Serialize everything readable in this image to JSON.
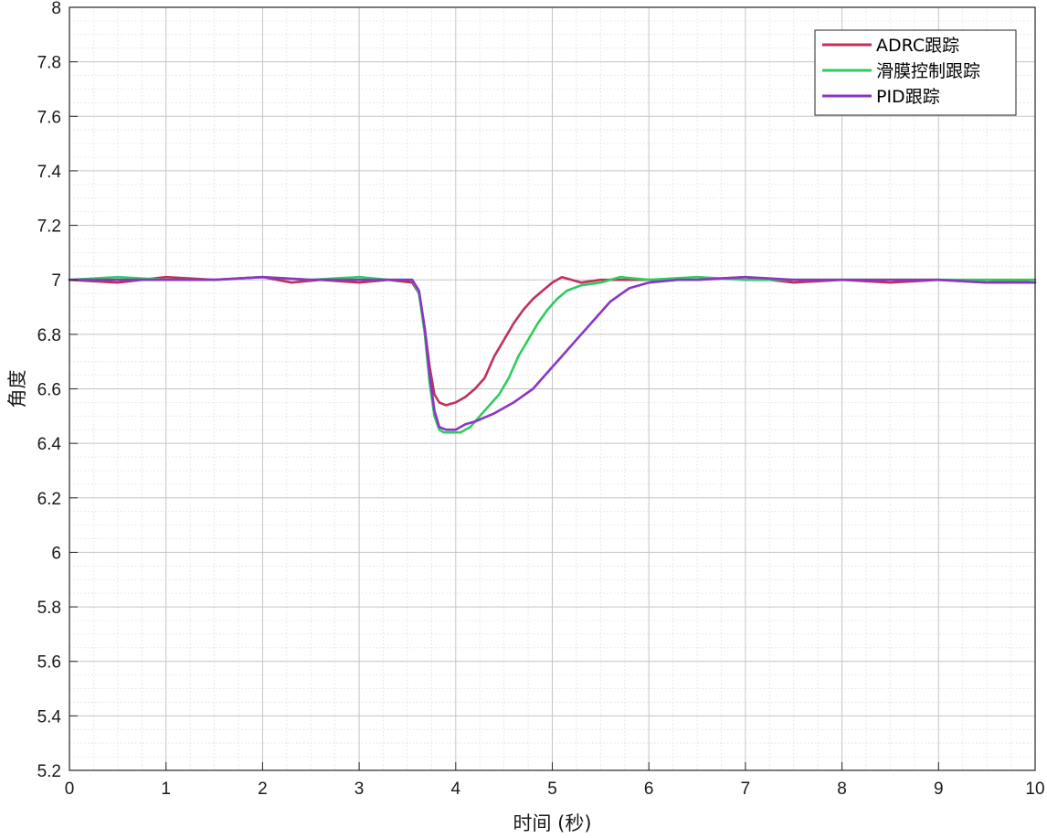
{
  "chart_data": {
    "type": "line",
    "xlabel": "时间 (秒)",
    "ylabel": "角度",
    "xlim": [
      0,
      10
    ],
    "ylim": [
      5.2,
      8
    ],
    "xticks": [
      0,
      1,
      2,
      3,
      4,
      5,
      6,
      7,
      8,
      9,
      10
    ],
    "yticks": [
      5.2,
      5.4,
      5.6,
      5.8,
      6,
      6.2,
      6.4,
      6.6,
      6.8,
      7,
      7.2,
      7.4,
      7.6,
      7.8,
      8
    ],
    "xtick_labels": [
      "0",
      "1",
      "2",
      "3",
      "4",
      "5",
      "6",
      "7",
      "8",
      "9",
      "10"
    ],
    "ytick_labels": [
      "5.2",
      "5.4",
      "5.6",
      "5.8",
      "6",
      "6.2",
      "6.4",
      "6.6",
      "6.8",
      "7",
      "7.2",
      "7.4",
      "7.6",
      "7.8",
      "8"
    ],
    "grid": true,
    "minor_grid": true,
    "legend_position": "top-right",
    "series": [
      {
        "name": "ADRC跟踪",
        "color": "#c2305a",
        "x": [
          0,
          0.5,
          1,
          1.5,
          2,
          2.3,
          2.6,
          3,
          3.3,
          3.55,
          3.62,
          3.68,
          3.73,
          3.78,
          3.83,
          3.9,
          4.0,
          4.1,
          4.2,
          4.3,
          4.4,
          4.5,
          4.6,
          4.7,
          4.8,
          4.9,
          5.0,
          5.1,
          5.2,
          5.3,
          5.5,
          6,
          6.5,
          7,
          7.5,
          8,
          8.5,
          9,
          9.5,
          10
        ],
        "y": [
          7.0,
          6.99,
          7.01,
          7.0,
          7.01,
          6.99,
          7.0,
          6.99,
          7.0,
          6.99,
          6.95,
          6.82,
          6.68,
          6.58,
          6.55,
          6.54,
          6.55,
          6.57,
          6.6,
          6.64,
          6.72,
          6.78,
          6.84,
          6.89,
          6.93,
          6.96,
          6.99,
          7.01,
          7.0,
          6.99,
          7.0,
          7.0,
          7.0,
          7.01,
          6.99,
          7.0,
          6.99,
          7.0,
          6.99,
          7.0
        ]
      },
      {
        "name": "滑膜控制跟踪",
        "color": "#2ecc5e",
        "x": [
          0,
          0.5,
          1,
          1.5,
          2,
          2.5,
          3,
          3.3,
          3.55,
          3.62,
          3.68,
          3.73,
          3.78,
          3.83,
          3.88,
          3.95,
          4.05,
          4.15,
          4.25,
          4.35,
          4.45,
          4.55,
          4.65,
          4.75,
          4.85,
          4.95,
          5.05,
          5.15,
          5.3,
          5.5,
          5.7,
          6,
          6.5,
          7,
          7.5,
          8,
          8.5,
          9,
          9.5,
          10
        ],
        "y": [
          7.0,
          7.01,
          7.0,
          7.0,
          7.01,
          7.0,
          7.01,
          7.0,
          7.0,
          6.95,
          6.8,
          6.62,
          6.5,
          6.45,
          6.44,
          6.44,
          6.44,
          6.46,
          6.5,
          6.54,
          6.58,
          6.64,
          6.72,
          6.78,
          6.84,
          6.89,
          6.93,
          6.96,
          6.98,
          6.99,
          7.01,
          7.0,
          7.01,
          7.0,
          7.0,
          7.0,
          7.0,
          7.0,
          7.0,
          7.0
        ]
      },
      {
        "name": "PID跟踪",
        "color": "#8a35c6",
        "x": [
          0,
          0.5,
          1,
          1.5,
          2,
          2.5,
          3,
          3.3,
          3.55,
          3.62,
          3.68,
          3.73,
          3.78,
          3.83,
          3.9,
          4.0,
          4.1,
          4.2,
          4.4,
          4.6,
          4.8,
          4.9,
          5.0,
          5.1,
          5.2,
          5.4,
          5.6,
          5.8,
          6,
          6.3,
          6.5,
          7,
          7.5,
          8,
          8.5,
          9,
          9.5,
          10
        ],
        "y": [
          7.0,
          7.0,
          7.0,
          7.0,
          7.01,
          7.0,
          7.0,
          7.0,
          7.0,
          6.96,
          6.82,
          6.65,
          6.52,
          6.46,
          6.45,
          6.45,
          6.47,
          6.48,
          6.51,
          6.55,
          6.6,
          6.64,
          6.68,
          6.72,
          6.76,
          6.84,
          6.92,
          6.97,
          6.99,
          7.0,
          7.0,
          7.01,
          7.0,
          7.0,
          7.0,
          7.0,
          6.99,
          6.99
        ]
      }
    ]
  }
}
